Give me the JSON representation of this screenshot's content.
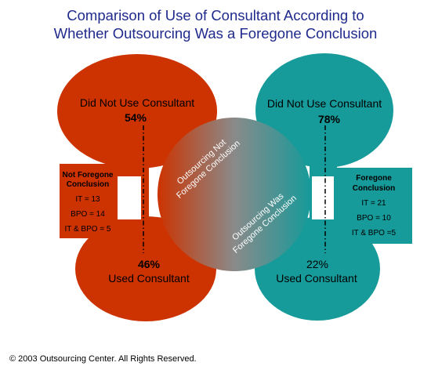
{
  "title": {
    "line1": "Comparison of Use of Consultant According to",
    "line2": "Whether Outsourcing Was a Foregone Conclusion"
  },
  "left": {
    "top_label": "Did Not Use Consultant",
    "top_pct": "54%",
    "bottom_pct": "46%",
    "bottom_label": "Used Consultant",
    "box": {
      "title1": "Not Foregone",
      "title2": "Conclusion",
      "it": "IT = 13",
      "bpo": "BPO = 14",
      "itbpo": "IT & BPO = 5"
    }
  },
  "right": {
    "top_label": "Did Not Use Consultant",
    "top_pct": "78%",
    "bottom_pct": "22%",
    "bottom_label": "Used Consultant",
    "box": {
      "title1": "Foregone",
      "title2": "Conclusion",
      "it": "IT = 21",
      "bpo": "BPO = 10",
      "itbpo": "IT & BPO =5"
    }
  },
  "center": {
    "upper1": "Outsourcing Not",
    "upper2": "Foregone Conclusion",
    "lower1": "Outsourcing Was",
    "lower2": "Foregone Conclusion"
  },
  "colors": {
    "left": "#cc3300",
    "right": "#169a9a",
    "title": "#1f2a8c"
  },
  "copyright": "© 2003 Outsourcing Center. All Rights Reserved."
}
